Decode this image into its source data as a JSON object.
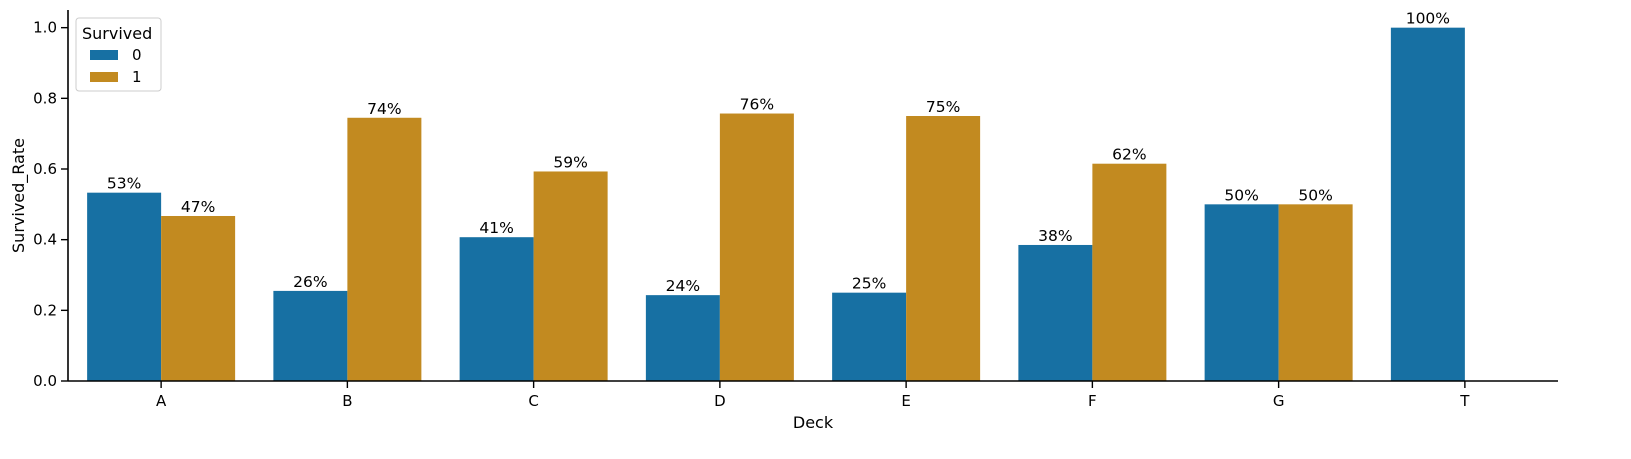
{
  "chart_data": {
    "type": "bar",
    "xlabel": "Deck",
    "ylabel": "Survived_Rate",
    "categories": [
      "A",
      "B",
      "C",
      "D",
      "E",
      "F",
      "G",
      "T"
    ],
    "ylim": [
      0,
      1.05
    ],
    "yticks": [
      "0.0",
      "0.2",
      "0.4",
      "0.6",
      "0.8",
      "1.0"
    ],
    "grid": false,
    "legend": {
      "title": "Survived",
      "position": "top-left"
    },
    "series": [
      {
        "name": "0",
        "color": "#1770a3",
        "values": [
          0.533,
          0.255,
          0.407,
          0.243,
          0.25,
          0.385,
          0.5,
          1.0
        ],
        "labels": [
          "53%",
          "26%",
          "41%",
          "24%",
          "25%",
          "38%",
          "50%",
          "100%"
        ]
      },
      {
        "name": "1",
        "color": "#c28a20",
        "values": [
          0.467,
          0.745,
          0.593,
          0.757,
          0.75,
          0.615,
          0.5,
          null
        ],
        "labels": [
          "47%",
          "74%",
          "59%",
          "76%",
          "75%",
          "62%",
          "50%",
          null
        ]
      }
    ]
  }
}
